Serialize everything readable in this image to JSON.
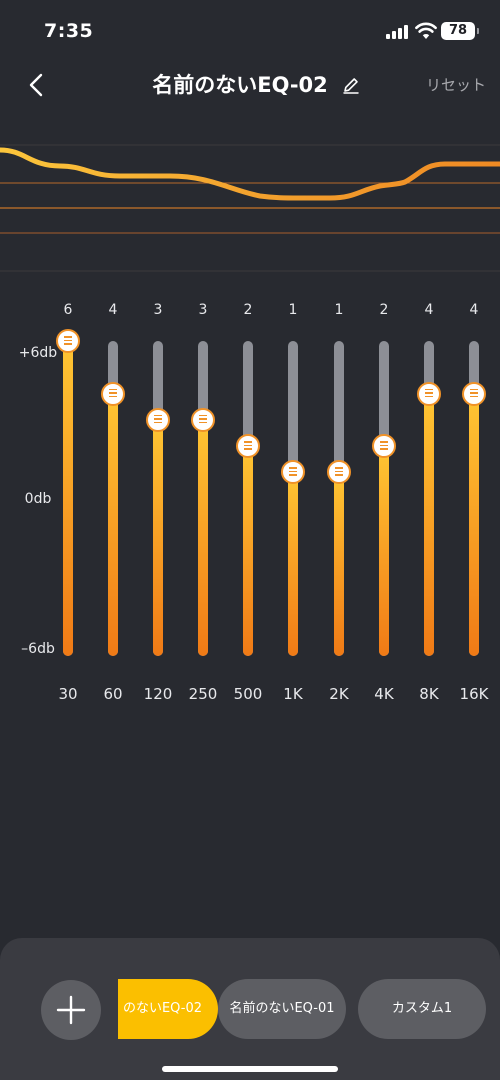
{
  "status_bar": {
    "time": "7:35",
    "battery": "78"
  },
  "header": {
    "title": "名前のないEQ-02",
    "reset_label": "リセット"
  },
  "db_labels": {
    "top": "+6db",
    "middle": "0db",
    "bottom": "–6db"
  },
  "bands": [
    {
      "freq": "30",
      "value": "6",
      "gain": 6
    },
    {
      "freq": "60",
      "value": "4",
      "gain": 4
    },
    {
      "freq": "120",
      "value": "3",
      "gain": 3
    },
    {
      "freq": "250",
      "value": "3",
      "gain": 3
    },
    {
      "freq": "500",
      "value": "2",
      "gain": 2
    },
    {
      "freq": "1K",
      "value": "1",
      "gain": 1
    },
    {
      "freq": "2K",
      "value": "1",
      "gain": 1
    },
    {
      "freq": "4K",
      "value": "2",
      "gain": 2
    },
    {
      "freq": "8K",
      "value": "4",
      "gain": 4
    },
    {
      "freq": "16K",
      "value": "4",
      "gain": 4
    }
  ],
  "presets": [
    {
      "label": "のないEQ-02",
      "active": true
    },
    {
      "label": "名前のないEQ-01",
      "active": false
    },
    {
      "label": "カスタム1",
      "active": false
    }
  ],
  "colors": {
    "accent": "#fbbf00",
    "background": "#282a30",
    "panel": "#3a3b41",
    "track": "#8d8f96"
  },
  "icons": {
    "back": "chevron-left-icon",
    "edit": "pencil-icon",
    "add": "plus-icon"
  }
}
